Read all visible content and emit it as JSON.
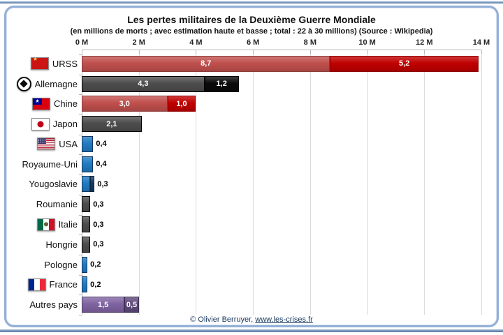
{
  "title": "Les pertes militaires de la Deuxième Guerre Mondiale",
  "subtitle": "(en millions de morts ; avec estimation haute et basse ; total : 22 à 30 millions) (Source : Wikipedia)",
  "colors": {
    "red_light": "#C0504D",
    "red_dark": "#C00000",
    "gray_dark": "#4D4D4D",
    "black": "#0A0A0A",
    "blue": "#1F7BC2",
    "navy": "#17375E",
    "purple_light": "#8064A2",
    "purple_dark": "#5F497A",
    "gridline": "#DADADA",
    "axis_line": "#B8B8B8",
    "frame_border": "#92AFD7",
    "accent_line": "#54749E",
    "footer_text": "#17365D"
  },
  "borders": {
    "red_light": "#8B3A38",
    "red_dark": "#8F0000",
    "gray_dark": "#000000",
    "black": "#000000",
    "blue": "#17375E",
    "navy": "#0F2540",
    "purple_light": "#4D3B66",
    "purple_dark": "#3B2E4D"
  },
  "chart_data": {
    "type": "bar",
    "orientation": "horizontal",
    "stacked": true,
    "title": "Les pertes militaires de la Deuxième Guerre Mondiale",
    "subtitle": "(en millions de morts ; avec estimation haute et basse ; total : 22 à 30 millions) (Source : Wikipedia)",
    "unit": "millions de morts",
    "xlim": [
      0,
      14
    ],
    "tick_step": 2,
    "tick_labels": [
      "0 M",
      "2 M",
      "4 M",
      "6 M",
      "8 M",
      "10 M",
      "12 M",
      "14 M"
    ],
    "grid": true,
    "categories": [
      "URSS",
      "Allemagne",
      "Chine",
      "Japon",
      "USA",
      "Royaume-Uni",
      "Yougoslavie",
      "Roumanie",
      "Italie",
      "Hongrie",
      "Pologne",
      "France",
      "Autres pays"
    ],
    "rows": [
      {
        "label": "URSS",
        "flag": "ussr",
        "segments": [
          {
            "value": 8.7,
            "label": "8,7",
            "color": "red_light"
          },
          {
            "value": 5.2,
            "label": "5,2",
            "color": "red_dark"
          }
        ]
      },
      {
        "label": "Allemagne",
        "flag": "germany",
        "segments": [
          {
            "value": 4.3,
            "label": "4,3",
            "color": "gray_dark"
          },
          {
            "value": 1.2,
            "label": "1,2",
            "color": "black"
          }
        ]
      },
      {
        "label": "Chine",
        "flag": "china_roc",
        "segments": [
          {
            "value": 3.0,
            "label": "3,0",
            "color": "red_light"
          },
          {
            "value": 1.0,
            "label": "1,0",
            "color": "red_dark"
          }
        ]
      },
      {
        "label": "Japon",
        "flag": "japan",
        "segments": [
          {
            "value": 2.1,
            "label": "2,1",
            "color": "gray_dark"
          }
        ]
      },
      {
        "label": "USA",
        "flag": "usa",
        "segments": [
          {
            "value": 0.4,
            "color": "blue"
          }
        ],
        "outside_label": "0,4"
      },
      {
        "label": "Royaume-Uni",
        "segments": [
          {
            "value": 0.4,
            "color": "blue"
          }
        ],
        "outside_label": "0,4"
      },
      {
        "label": "Yougoslavie",
        "segments": [
          {
            "value": 0.3,
            "color": "blue"
          },
          {
            "value": 0.15,
            "color": "navy"
          }
        ],
        "outside_label": "0,3"
      },
      {
        "label": "Roumanie",
        "segments": [
          {
            "value": 0.3,
            "color": "gray_dark"
          }
        ],
        "outside_label": "0,3"
      },
      {
        "label": "Italie",
        "flag": "italy",
        "segments": [
          {
            "value": 0.3,
            "color": "gray_dark"
          }
        ],
        "outside_label": "0,3"
      },
      {
        "label": "Hongrie",
        "segments": [
          {
            "value": 0.3,
            "color": "gray_dark"
          }
        ],
        "outside_label": "0,3"
      },
      {
        "label": "Pologne",
        "segments": [
          {
            "value": 0.2,
            "color": "blue"
          }
        ],
        "outside_label": "0,2"
      },
      {
        "label": "France",
        "flag": "france",
        "segments": [
          {
            "value": 0.2,
            "color": "blue"
          }
        ],
        "outside_label": "0,2"
      },
      {
        "label": "Autres pays",
        "segments": [
          {
            "value": 1.5,
            "label": "1,5",
            "color": "purple_light"
          },
          {
            "value": 0.5,
            "label": "0,5",
            "color": "purple_dark"
          }
        ]
      }
    ]
  },
  "footer": {
    "copyright": "© Olivier Berruyer,",
    "link": "www.les-crises.fr"
  }
}
